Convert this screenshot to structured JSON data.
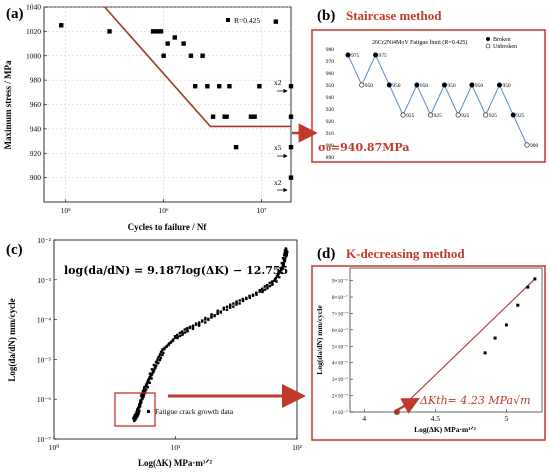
{
  "panels": {
    "a": {
      "label": "(a)"
    },
    "b": {
      "label": "(b)",
      "title": "Staircase method"
    },
    "c": {
      "label": "(c)"
    },
    "d": {
      "label": "(d)",
      "title": "K-decreasing method"
    }
  },
  "colors": {
    "accent": "#c0392b",
    "line_blue": "#5b8dc9",
    "fit_red": "#a33a2a"
  },
  "chart_data": [
    {
      "id": "a",
      "type": "scatter",
      "xlabel": "Cycles to failure / Nf",
      "ylabel": "Maximum stress / MPa",
      "xscale": "log",
      "xlim": [
        60000,
        20000000
      ],
      "ylim": [
        880,
        1040
      ],
      "xticks": [
        "10⁵",
        "10⁶",
        "10⁷"
      ],
      "yticks": [
        "900",
        "920",
        "940",
        "960",
        "980",
        "1000",
        "1020",
        "1040"
      ],
      "legend": "R=0.425",
      "annotations": [
        "x2",
        "x5",
        "x2"
      ],
      "points": [
        {
          "x": 90000,
          "y": 1025
        },
        {
          "x": 280000,
          "y": 1020
        },
        {
          "x": 780000,
          "y": 1020
        },
        {
          "x": 860000,
          "y": 1020
        },
        {
          "x": 940000,
          "y": 1020
        },
        {
          "x": 1000000,
          "y": 1000
        },
        {
          "x": 1100000,
          "y": 1010
        },
        {
          "x": 1300000,
          "y": 1015
        },
        {
          "x": 1600000,
          "y": 1010
        },
        {
          "x": 1900000,
          "y": 1000
        },
        {
          "x": 2100000,
          "y": 975
        },
        {
          "x": 2500000,
          "y": 1000
        },
        {
          "x": 2800000,
          "y": 975
        },
        {
          "x": 3200000,
          "y": 950
        },
        {
          "x": 3700000,
          "y": 975
        },
        {
          "x": 4200000,
          "y": 950
        },
        {
          "x": 4400000,
          "y": 950
        },
        {
          "x": 4700000,
          "y": 975
        },
        {
          "x": 5500000,
          "y": 925
        },
        {
          "x": 7800000,
          "y": 950
        },
        {
          "x": 8500000,
          "y": 950
        },
        {
          "x": 9500000,
          "y": 975
        },
        {
          "x": 14000000,
          "y": 1028
        },
        {
          "x": 20000000,
          "y": 975
        },
        {
          "x": 20000000,
          "y": 950
        },
        {
          "x": 20000000,
          "y": 925
        },
        {
          "x": 20000000,
          "y": 900
        }
      ],
      "fit_line": [
        {
          "x": 250000,
          "y": 1040
        },
        {
          "x": 3000000,
          "y": 942
        },
        {
          "x": 20000000,
          "y": 942
        }
      ]
    },
    {
      "id": "b",
      "type": "line",
      "title": "26Cr2Ni4MoV Fatigue limit  (R=0.425)",
      "legend": [
        "Broken",
        "Unbroken"
      ],
      "sigma_label": "σ₀=940.87MPa",
      "ylim": [
        890,
        980
      ],
      "yticks": [
        "890",
        "900",
        "910",
        "920",
        "930",
        "940",
        "950",
        "960",
        "970",
        "980"
      ],
      "steps": [
        975,
        950,
        975,
        950,
        925,
        950,
        925,
        950,
        925,
        950,
        925,
        950,
        925,
        900
      ],
      "broken": [
        true,
        false,
        true,
        true,
        false,
        true,
        false,
        true,
        false,
        true,
        false,
        true,
        true,
        false
      ]
    },
    {
      "id": "c",
      "type": "scatter",
      "xlabel": "Log(ΔK) MPa·m¹ᐟ²",
      "ylabel": "Log(da/dN) mm/cycle",
      "xscale": "log",
      "yscale": "log",
      "xlim": [
        1,
        100
      ],
      "ylim": [
        1e-07,
        0.01
      ],
      "xticks": [
        "10⁰",
        "10¹",
        "10²"
      ],
      "yticks": [
        "10⁻⁷",
        "10⁻⁶",
        "10⁻⁵",
        "10⁻⁴",
        "10⁻³",
        "10⁻²"
      ],
      "equation": "log(da/dN) = 9.187log(ΔK) − 12.755",
      "legend": "Fatigue crack growth data",
      "curve": [
        {
          "x": 4.6,
          "y": 3e-07
        },
        {
          "x": 4.8,
          "y": 4e-07
        },
        {
          "x": 5.0,
          "y": 6e-07
        },
        {
          "x": 5.3,
          "y": 1.1e-06
        },
        {
          "x": 5.7,
          "y": 2e-06
        },
        {
          "x": 6.3,
          "y": 4e-06
        },
        {
          "x": 7.0,
          "y": 8e-06
        },
        {
          "x": 8.0,
          "y": 1.8e-05
        },
        {
          "x": 10,
          "y": 3.5e-05
        },
        {
          "x": 13,
          "y": 6e-05
        },
        {
          "x": 18,
          "y": 0.0001
        },
        {
          "x": 25,
          "y": 0.00018
        },
        {
          "x": 35,
          "y": 0.0003
        },
        {
          "x": 50,
          "y": 0.0005
        },
        {
          "x": 65,
          "y": 0.0009
        },
        {
          "x": 75,
          "y": 0.0018
        },
        {
          "x": 80,
          "y": 0.004
        },
        {
          "x": 82,
          "y": 0.006
        }
      ]
    },
    {
      "id": "d",
      "type": "line",
      "xlabel": "Log(ΔK) MPa·m¹ᐟ²",
      "ylabel": "Log(da/dN) mm/cycle",
      "xticks": [
        "4",
        "4.5",
        "5"
      ],
      "yticks": [
        "1×10⁻⁷",
        "2×10⁻⁷",
        "3×10⁻⁷",
        "4×10⁻⁷",
        "5×10⁻⁷",
        "6×10⁻⁷",
        "7×10⁻⁷",
        "8×10⁻⁷",
        "9×10⁻⁷"
      ],
      "threshold_label": "ΔKth= 4.23 MPa√m",
      "points": [
        {
          "x": 4.23,
          "y": 1.0
        },
        {
          "x": 4.85,
          "y": 4.6
        },
        {
          "x": 4.92,
          "y": 5.5
        },
        {
          "x": 5.0,
          "y": 6.3
        },
        {
          "x": 5.08,
          "y": 7.5
        },
        {
          "x": 5.15,
          "y": 8.6
        },
        {
          "x": 5.2,
          "y": 9.1
        }
      ]
    }
  ]
}
